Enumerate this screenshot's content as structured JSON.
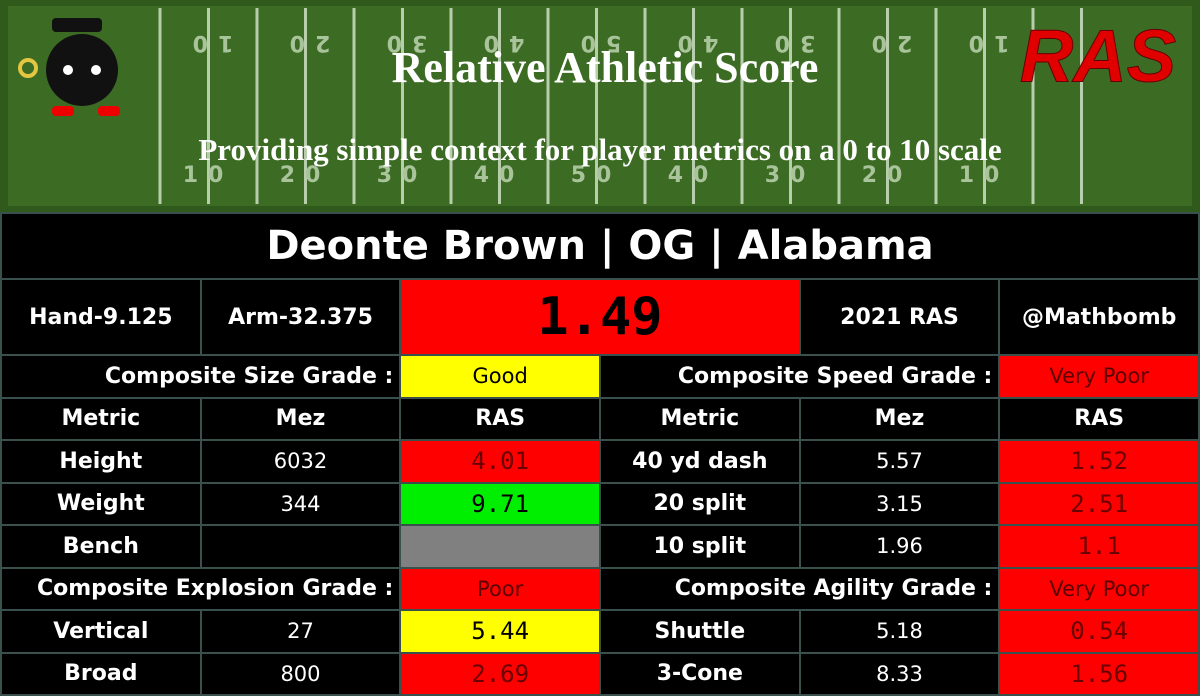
{
  "header": {
    "title": "Relative Athletic Score",
    "subtitle": "Providing simple context for player metrics on a 0 to 10 scale",
    "logo": "RAS",
    "yard_numbers": [
      "10",
      "20",
      "30",
      "40",
      "50",
      "40",
      "30",
      "20",
      "10"
    ]
  },
  "player": "Deonte Brown | OG | Alabama",
  "info": {
    "hand": "Hand-9.125",
    "arm": "Arm-32.375",
    "score": "1.49",
    "score_color": "#ff0000",
    "year": "2021 RAS",
    "handle": "@Mathbomb"
  },
  "sections": [
    {
      "grades": [
        {
          "label": "Composite Size Grade :",
          "value": "Good",
          "color": "#ffff00",
          "text_color": "#000000"
        },
        {
          "label": "Composite Speed Grade :",
          "value": "Very Poor",
          "color": "#ff0000",
          "text_color": "#5a0000"
        }
      ],
      "header": [
        "Metric",
        "Mez",
        "RAS",
        "Metric",
        "Mez",
        "RAS"
      ],
      "rows": [
        [
          "Height",
          "6032",
          {
            "text": "4.01",
            "color": "#ff0000"
          },
          "40 yd dash",
          "5.57",
          {
            "text": "1.52",
            "color": "#ff0000"
          }
        ],
        [
          "Weight",
          "344",
          {
            "text": "9.71",
            "color": "#00ee00"
          },
          "20 split",
          "3.15",
          {
            "text": "2.51",
            "color": "#ff0000"
          }
        ],
        [
          "Bench",
          null,
          {
            "color": "#808080"
          },
          "10 split",
          "1.96",
          {
            "text": "1.1",
            "color": "#ff0000"
          }
        ]
      ]
    },
    {
      "grades": [
        {
          "label": "Composite Explosion Grade :",
          "value": "Poor",
          "color": "#ff0000",
          "text_color": "#5a0000"
        },
        {
          "label": "Composite Agility Grade :",
          "value": "Very Poor",
          "color": "#ff0000",
          "text_color": "#5a0000"
        }
      ],
      "rows": [
        [
          "Vertical",
          "27",
          {
            "text": "5.44",
            "color": "#ffff00"
          },
          "Shuttle",
          "5.18",
          {
            "text": "0.54",
            "color": "#ff0000"
          }
        ],
        [
          "Broad",
          "800",
          {
            "text": "2.69",
            "color": "#ff0000"
          },
          "3-Cone",
          "8.33",
          {
            "text": "1.56",
            "color": "#ff0000"
          }
        ]
      ]
    }
  ]
}
